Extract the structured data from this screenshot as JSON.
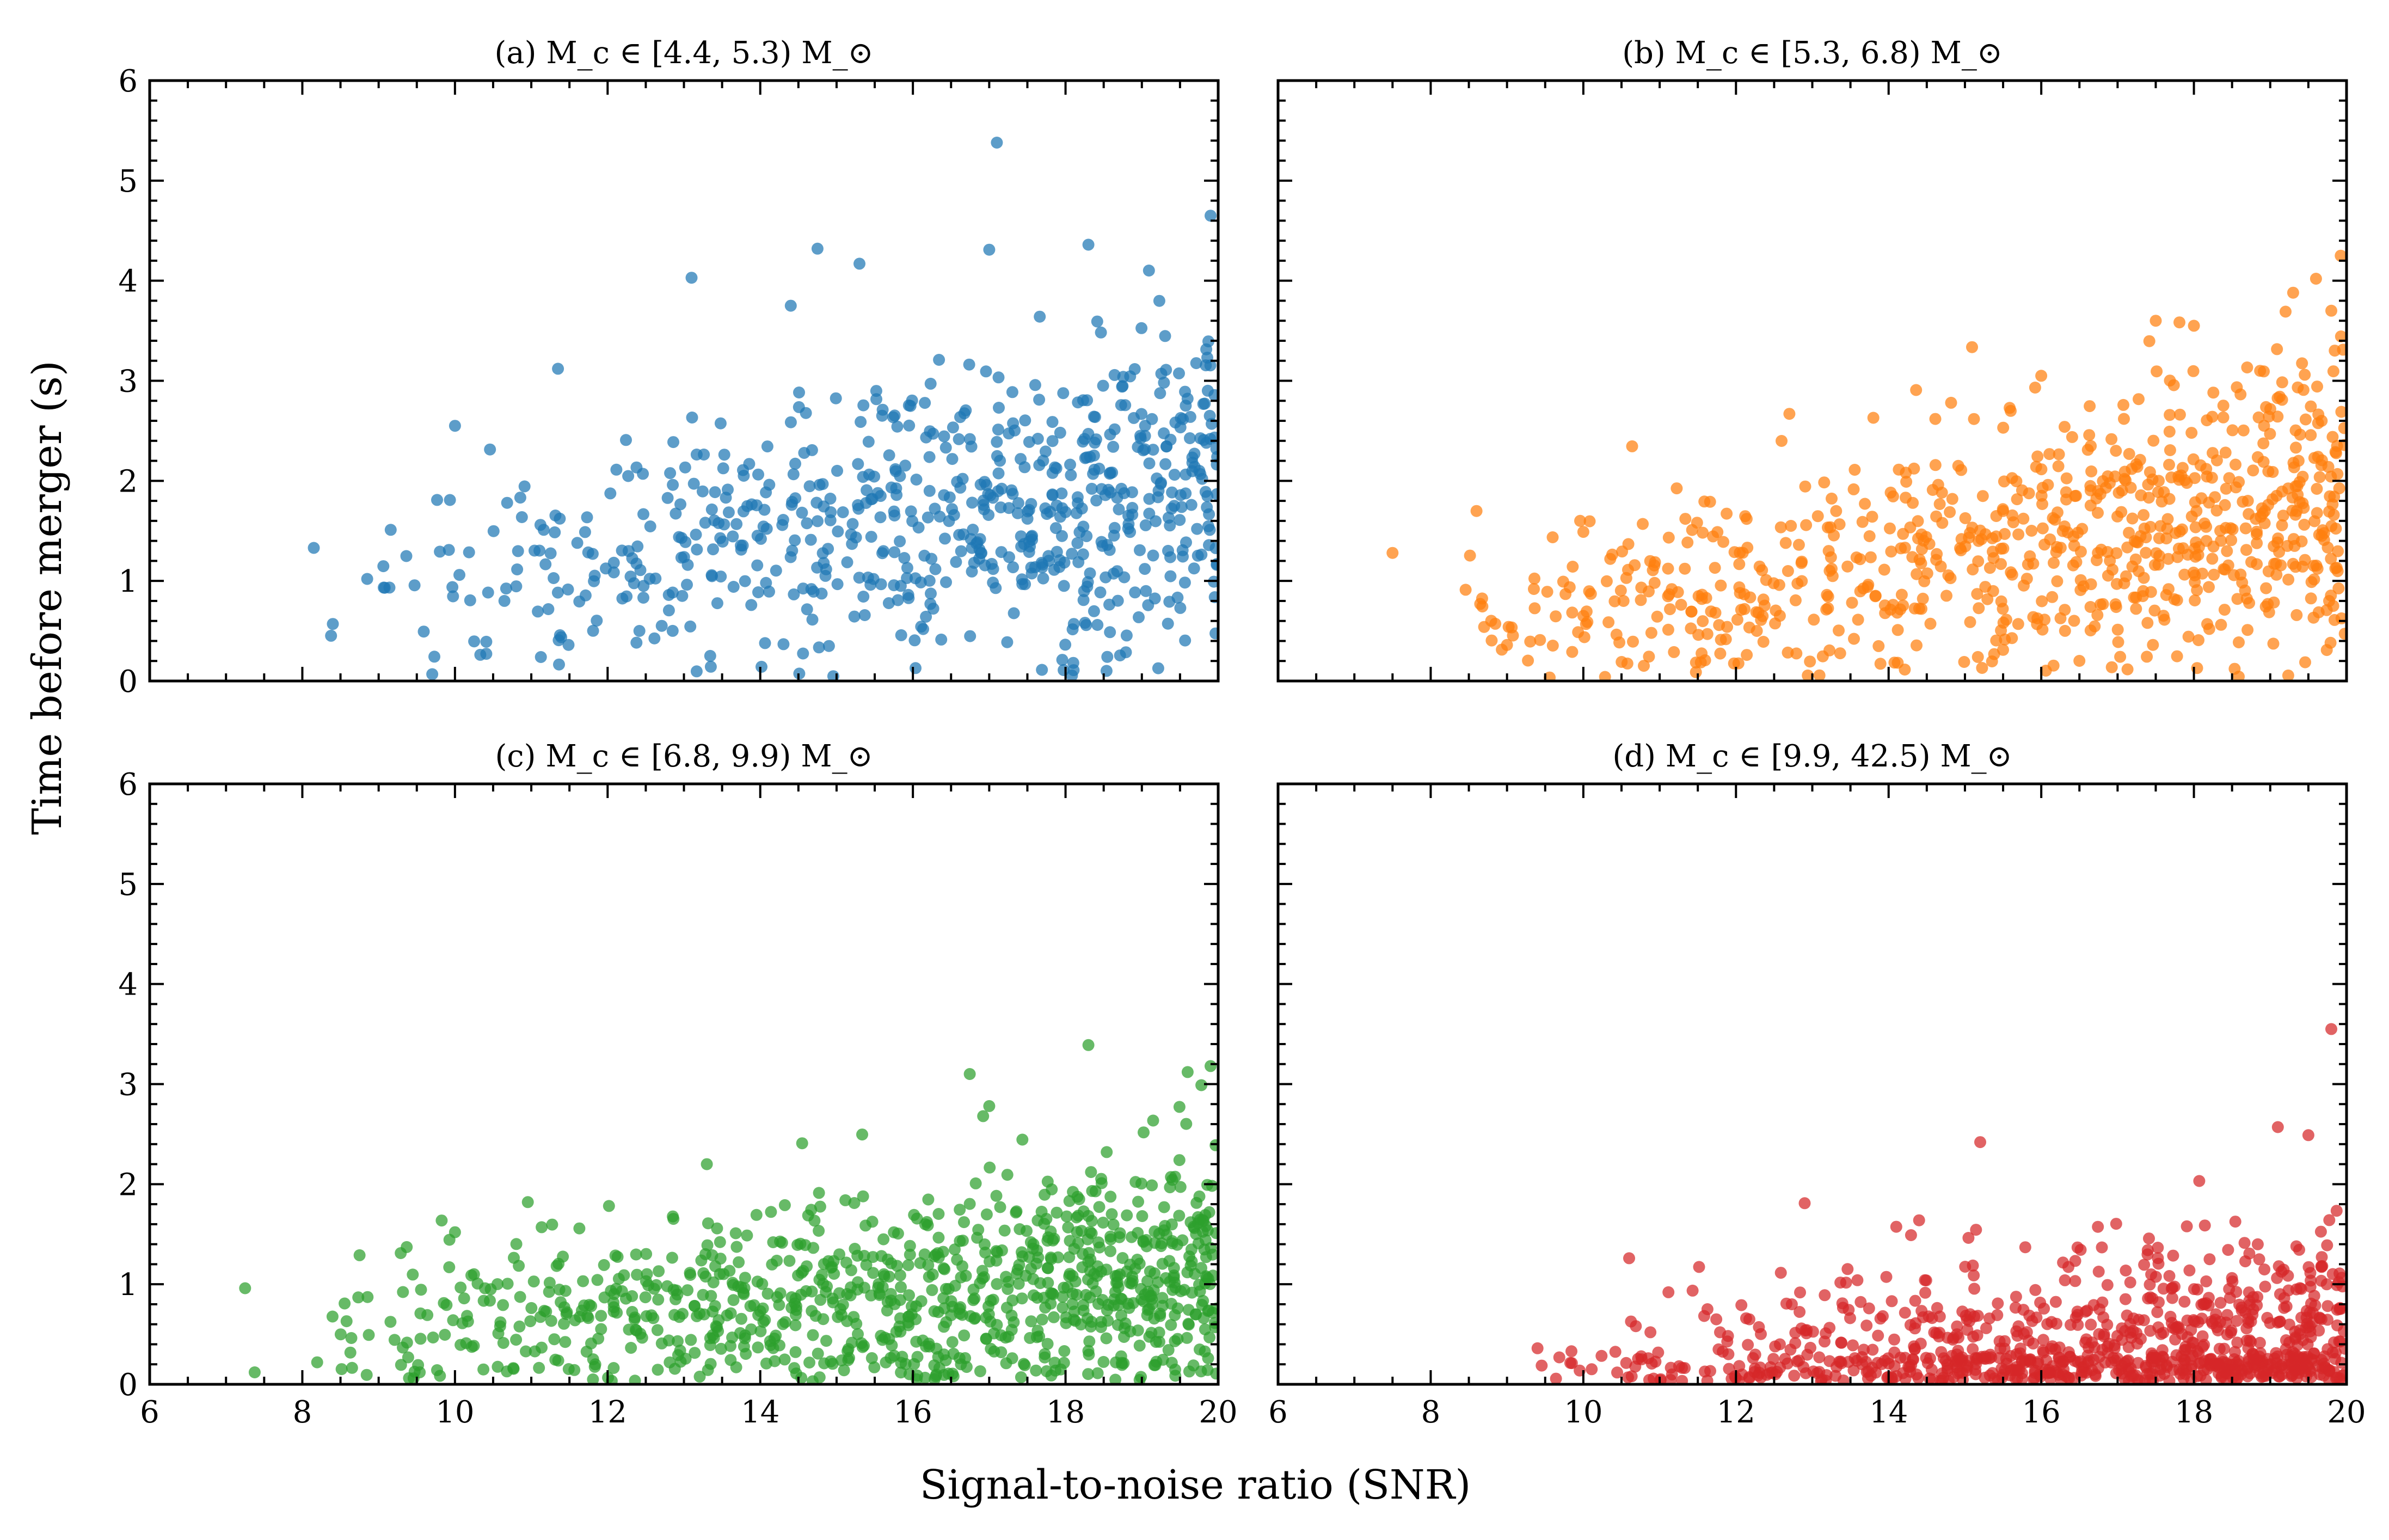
{
  "figure": {
    "xlabel": "Signal-to-noise ratio (SNR)",
    "ylabel": "Time before merger (s)"
  },
  "chart_data": [
    {
      "type": "scatter",
      "title": "(a)  M_c ∈ [4.4, 5.3) M_⊙",
      "xlim": [
        6,
        20
      ],
      "ylim": [
        0,
        6
      ],
      "x_ticks": [
        "6",
        "8",
        "10",
        "12",
        "14",
        "16",
        "18",
        "20"
      ],
      "y_ticks": [
        "0",
        "1",
        "2",
        "3",
        "4",
        "5",
        "6"
      ],
      "show_x_tick_labels": false,
      "show_y_tick_labels": true,
      "grid": false,
      "series": [
        {
          "color": "#1f77b4",
          "n_points": 700,
          "snr_min": 8.1,
          "time_trend": {
            "at_snr_8": 0.95,
            "at_snr_20": 2.0
          },
          "time_spread": 0.75,
          "notable_points": [
            {
              "x": 8.15,
              "y": 1.33
            },
            {
              "x": 8.4,
              "y": 0.57
            },
            {
              "x": 8.85,
              "y": 1.02
            },
            {
              "x": 10.0,
              "y": 2.55
            },
            {
              "x": 11.35,
              "y": 3.12
            },
            {
              "x": 13.1,
              "y": 4.03
            },
            {
              "x": 14.4,
              "y": 3.75
            },
            {
              "x": 14.75,
              "y": 4.32
            },
            {
              "x": 15.3,
              "y": 4.17
            },
            {
              "x": 17.1,
              "y": 5.38
            },
            {
              "x": 17.0,
              "y": 4.31
            },
            {
              "x": 18.3,
              "y": 4.36
            },
            {
              "x": 19.9,
              "y": 4.65
            },
            {
              "x": 14.9,
              "y": 0.35
            }
          ]
        }
      ]
    },
    {
      "type": "scatter",
      "title": "(b)  M_c ∈ [5.3, 6.8) M_⊙",
      "xlim": [
        6,
        20
      ],
      "ylim": [
        0,
        6
      ],
      "x_ticks": [
        "6",
        "8",
        "10",
        "12",
        "14",
        "16",
        "18",
        "20"
      ],
      "y_ticks": [
        "0",
        "1",
        "2",
        "3",
        "4",
        "5",
        "6"
      ],
      "show_x_tick_labels": false,
      "show_y_tick_labels": false,
      "grid": false,
      "series": [
        {
          "color": "#ff7f0e",
          "n_points": 800,
          "snr_min": 7.5,
          "time_trend": {
            "at_snr_8": 0.6,
            "at_snr_20": 1.8
          },
          "time_spread": 0.7,
          "notable_points": [
            {
              "x": 7.5,
              "y": 1.28
            },
            {
              "x": 8.7,
              "y": 0.54
            },
            {
              "x": 9.0,
              "y": 0.36
            },
            {
              "x": 10.0,
              "y": 1.49
            },
            {
              "x": 12.7,
              "y": 2.67
            },
            {
              "x": 13.8,
              "y": 2.63
            },
            {
              "x": 16.0,
              "y": 3.05
            },
            {
              "x": 17.5,
              "y": 3.6
            },
            {
              "x": 18.0,
              "y": 3.55
            },
            {
              "x": 19.3,
              "y": 3.88
            },
            {
              "x": 19.6,
              "y": 4.02
            },
            {
              "x": 19.8,
              "y": 3.7
            }
          ]
        }
      ]
    },
    {
      "type": "scatter",
      "title": "(c)  M_c ∈ [6.8, 9.9) M_⊙",
      "xlim": [
        6,
        20
      ],
      "ylim": [
        0,
        6
      ],
      "x_ticks": [
        "6",
        "8",
        "10",
        "12",
        "14",
        "16",
        "18",
        "20"
      ],
      "y_ticks": [
        "0",
        "1",
        "2",
        "3",
        "4",
        "5",
        "6"
      ],
      "show_x_tick_labels": true,
      "show_y_tick_labels": true,
      "grid": false,
      "series": [
        {
          "color": "#2ca02c",
          "n_points": 950,
          "snr_min": 7.2,
          "time_trend": {
            "at_snr_8": 0.55,
            "at_snr_20": 1.1
          },
          "time_spread": 0.6,
          "notable_points": [
            {
              "x": 7.25,
              "y": 0.96
            },
            {
              "x": 8.75,
              "y": 1.29
            },
            {
              "x": 10.0,
              "y": 1.52
            },
            {
              "x": 13.3,
              "y": 2.2
            },
            {
              "x": 17.0,
              "y": 2.78
            },
            {
              "x": 18.3,
              "y": 3.39
            },
            {
              "x": 19.6,
              "y": 3.12
            },
            {
              "x": 19.9,
              "y": 3.18
            }
          ]
        }
      ]
    },
    {
      "type": "scatter",
      "title": "(d)  M_c ∈ [9.9, 42.5) M_⊙",
      "xlim": [
        6,
        20
      ],
      "ylim": [
        0,
        6
      ],
      "x_ticks": [
        "6",
        "8",
        "10",
        "12",
        "14",
        "16",
        "18",
        "20"
      ],
      "y_ticks": [
        "0",
        "1",
        "2",
        "3",
        "4",
        "5",
        "6"
      ],
      "show_x_tick_labels": true,
      "show_y_tick_labels": false,
      "grid": false,
      "series": [
        {
          "color": "#d62728",
          "n_points": 900,
          "snr_min": 9.3,
          "time_trend": {
            "at_snr_8": 0.15,
            "at_snr_20": 0.35
          },
          "time_spread": 0.55,
          "notable_points": [
            {
              "x": 9.4,
              "y": 0.36
            },
            {
              "x": 10.6,
              "y": 1.26
            },
            {
              "x": 12.9,
              "y": 1.81
            },
            {
              "x": 15.2,
              "y": 2.42
            },
            {
              "x": 19.1,
              "y": 2.57
            },
            {
              "x": 19.5,
              "y": 2.49
            },
            {
              "x": 19.8,
              "y": 3.55
            }
          ]
        }
      ]
    }
  ]
}
